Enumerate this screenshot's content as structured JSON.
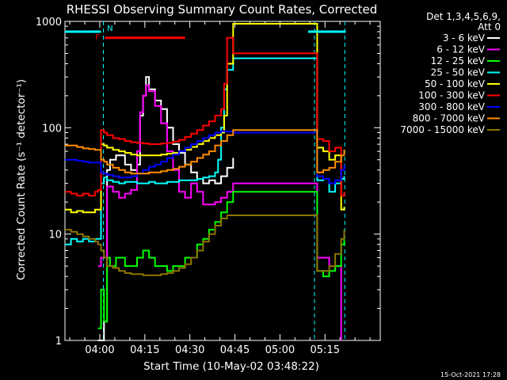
{
  "chart_data": {
    "type": "line",
    "title": "RHESSI Observing Summary Count Rates, Corrected",
    "xlabel": "Start Time (10-May-02 03:48:22)",
    "ylabel": "Corrected Count Rate (s⁻¹ detector⁻¹)",
    "yscale": "log",
    "ylim": [
      1,
      1000
    ],
    "x_unit": "minutes after 03:48:22",
    "xlim": [
      0,
      105
    ],
    "x_ticks": [
      {
        "label": "04:00",
        "value": 11.6
      },
      {
        "label": "04:15",
        "value": 26.6
      },
      {
        "label": "04:30",
        "value": 41.6
      },
      {
        "label": "04:45",
        "value": 56.6
      },
      {
        "label": "05:00",
        "value": 71.6
      },
      {
        "label": "05:15",
        "value": 86.6
      }
    ],
    "y_ticks": [
      {
        "label": "1",
        "value": 1
      },
      {
        "label": "10",
        "value": 10
      },
      {
        "label": "100",
        "value": 100
      },
      {
        "label": "1000",
        "value": 1000
      }
    ],
    "legend_position": "top-right",
    "legend_header": [
      "Det 1,3,4,5,6,9,",
      "Att 0"
    ],
    "footer": "15-Oct-2021 17:28",
    "flags": {
      "night_bar": {
        "color": "#00ffff",
        "ranges": [
          [
            0,
            12.0
          ],
          [
            81.0,
            93.5
          ]
        ],
        "y": 800
      },
      "flare_bar": {
        "color": "#ff0000",
        "label": "F",
        "range": [
          13.3,
          40.0
        ],
        "y": 700
      },
      "saa_label": {
        "label": "N",
        "x": 14.0,
        "y": 870
      }
    },
    "gaps": [
      {
        "start": 12.8,
        "end": 83.1
      },
      {
        "start": 93.2,
        "end": 105
      }
    ],
    "series": [
      {
        "name": "3 - 6 keV",
        "color": "#ffffff",
        "x": [
          0,
          10,
          11,
          12,
          13,
          14,
          15,
          17,
          20,
          22,
          24,
          25,
          26,
          27,
          28,
          30,
          32,
          34,
          36,
          38,
          40,
          42,
          44,
          46,
          48,
          50,
          52,
          54,
          56
        ],
        "y": [
          null,
          null,
          1,
          1,
          1.5,
          40,
          50,
          55,
          45,
          40,
          45,
          130,
          200,
          300,
          230,
          180,
          150,
          100,
          70,
          58,
          45,
          38,
          33,
          30,
          32,
          30,
          35,
          42,
          52
        ]
      },
      {
        "name": "6 - 12 keV",
        "color": "#ff00ff",
        "x": [
          0,
          10,
          11,
          12,
          13,
          14,
          16,
          18,
          20,
          22,
          24,
          25,
          26,
          27,
          28,
          30,
          32,
          34,
          36,
          38,
          40,
          42,
          44,
          46,
          48,
          50,
          52,
          54,
          56,
          84,
          86,
          88,
          90,
          91,
          92
        ],
        "y": [
          null,
          null,
          5,
          6,
          6,
          28,
          25,
          22,
          24,
          26,
          60,
          140,
          200,
          250,
          220,
          160,
          110,
          60,
          40,
          25,
          22,
          30,
          25,
          19,
          19,
          20,
          22,
          25,
          30,
          6,
          6,
          5,
          5,
          5,
          1
        ]
      },
      {
        "name": "12 - 25 keV",
        "color": "#00ff00",
        "x": [
          0,
          10,
          11,
          12,
          13,
          14,
          15,
          17,
          20,
          22,
          24,
          26,
          28,
          30,
          32,
          34,
          36,
          38,
          40,
          42,
          44,
          46,
          48,
          50,
          52,
          54,
          56,
          84,
          86,
          88,
          90,
          92,
          93
        ],
        "y": [
          null,
          null,
          1.3,
          3,
          1.5,
          6,
          5,
          6,
          5,
          5,
          6,
          7,
          6,
          5,
          5,
          4.5,
          5,
          5,
          6,
          6,
          8,
          9,
          11,
          13,
          16,
          20,
          25,
          4.5,
          4,
          4.5,
          5,
          8,
          10
        ]
      },
      {
        "name": "25 - 50 keV",
        "color": "#00ffff",
        "x": [
          0,
          2,
          4,
          6,
          8,
          10,
          11,
          12,
          13,
          14,
          16,
          18,
          20,
          22,
          24,
          26,
          28,
          30,
          32,
          34,
          36,
          38,
          40,
          42,
          44,
          46,
          48,
          50,
          51,
          52,
          53,
          54,
          56,
          84,
          86,
          88,
          90,
          92,
          93
        ],
        "y": [
          8,
          9,
          8.5,
          9,
          8.5,
          9,
          9,
          30,
          34,
          32,
          31,
          30,
          31,
          31,
          30,
          30,
          31,
          30,
          30,
          31,
          31,
          32,
          32,
          32,
          33,
          34,
          35,
          38,
          50,
          100,
          230,
          350,
          450,
          32,
          33,
          25,
          30,
          33,
          35
        ]
      },
      {
        "name": "50 - 100 keV",
        "color": "#ffff00",
        "x": [
          0,
          2,
          4,
          6,
          8,
          10,
          11,
          12,
          13,
          14,
          16,
          18,
          20,
          22,
          24,
          26,
          28,
          30,
          32,
          34,
          36,
          38,
          40,
          42,
          44,
          46,
          48,
          50,
          52,
          53,
          54,
          56,
          84,
          86,
          88,
          90,
          92,
          93
        ],
        "y": [
          17,
          16,
          16.5,
          16,
          16,
          17,
          17,
          70,
          68,
          65,
          62,
          60,
          58,
          56,
          55,
          55,
          55,
          55,
          56,
          57,
          58,
          60,
          62,
          66,
          70,
          75,
          80,
          85,
          90,
          130,
          400,
          950,
          65,
          60,
          50,
          55,
          17,
          18
        ]
      },
      {
        "name": "100 - 300 keV",
        "color": "#ff0000",
        "x": [
          0,
          2,
          4,
          6,
          8,
          10,
          11,
          12,
          13,
          14,
          16,
          18,
          20,
          22,
          24,
          26,
          28,
          30,
          32,
          34,
          36,
          38,
          40,
          42,
          44,
          46,
          48,
          50,
          52,
          53,
          54,
          56,
          84,
          86,
          88,
          90,
          92,
          93
        ],
        "y": [
          25,
          24,
          23,
          24,
          23,
          25,
          26,
          95,
          90,
          85,
          80,
          78,
          75,
          73,
          72,
          71,
          70,
          70,
          71,
          72,
          74,
          77,
          82,
          88,
          95,
          105,
          115,
          130,
          150,
          260,
          700,
          500,
          78,
          75,
          60,
          65,
          23,
          25
        ]
      },
      {
        "name": "300 - 800 keV",
        "color": "#0000ff",
        "x": [
          0,
          2,
          4,
          6,
          8,
          10,
          11,
          12,
          13,
          14,
          16,
          18,
          20,
          22,
          24,
          26,
          28,
          30,
          32,
          34,
          36,
          38,
          40,
          42,
          44,
          46,
          48,
          50,
          52,
          54,
          56,
          84,
          86,
          88,
          90,
          92,
          93
        ],
        "y": [
          50,
          50,
          49,
          48,
          47,
          47,
          47,
          38,
          37,
          36,
          35,
          34,
          34,
          35,
          37,
          40,
          43,
          45,
          48,
          52,
          56,
          60,
          65,
          70,
          75,
          80,
          85,
          90,
          93,
          92,
          90,
          35,
          33,
          30,
          32,
          40,
          45
        ]
      },
      {
        "name": "800 - 7000 keV",
        "color": "#ff8c00",
        "x": [
          0,
          2,
          4,
          6,
          8,
          10,
          11,
          12,
          13,
          14,
          16,
          18,
          20,
          22,
          24,
          26,
          28,
          30,
          32,
          34,
          36,
          38,
          40,
          42,
          44,
          46,
          48,
          50,
          52,
          54,
          56,
          84,
          86,
          88,
          90,
          92,
          93
        ],
        "y": [
          68,
          68,
          66,
          64,
          63,
          62,
          62,
          50,
          48,
          45,
          42,
          40,
          38,
          37,
          37,
          37,
          38,
          38,
          39,
          40,
          41,
          43,
          45,
          48,
          52,
          56,
          60,
          68,
          75,
          85,
          95,
          38,
          40,
          42,
          48,
          55,
          62
        ]
      },
      {
        "name": "7000 - 15000 keV",
        "color": "#8b7500",
        "x": [
          0,
          2,
          4,
          6,
          8,
          10,
          11,
          12,
          13,
          14,
          16,
          18,
          20,
          22,
          24,
          26,
          28,
          30,
          32,
          34,
          36,
          38,
          40,
          42,
          44,
          46,
          48,
          50,
          52,
          54,
          56,
          84,
          86,
          88,
          90,
          92,
          93
        ],
        "y": [
          11,
          10.5,
          10,
          9.5,
          9,
          8.5,
          8,
          7,
          6,
          5,
          4.8,
          4.5,
          4.3,
          4.2,
          4.2,
          4.1,
          4.1,
          4.1,
          4.2,
          4.3,
          4.5,
          4.8,
          5.2,
          6,
          7,
          8.5,
          10,
          12,
          14,
          15,
          15,
          4.5,
          4.5,
          5,
          6.5,
          9,
          11
        ]
      }
    ]
  }
}
